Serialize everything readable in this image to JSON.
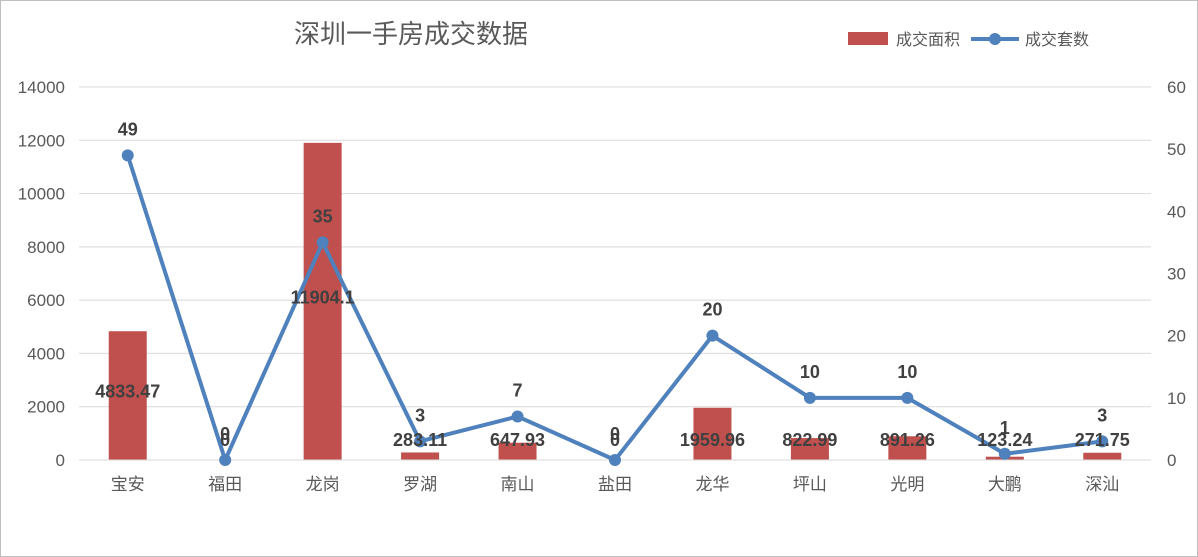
{
  "chart_data": {
    "type": "bar",
    "title": "深圳一手房成交数据",
    "categories": [
      "宝安",
      "福田",
      "龙岗",
      "罗湖",
      "南山",
      "盐田",
      "龙华",
      "坪山",
      "光明",
      "大鹏",
      "深汕"
    ],
    "series": [
      {
        "name": "成交面积",
        "type": "bar",
        "axis": "left",
        "color": "#c0504d",
        "values": [
          4833.47,
          0,
          11904.1,
          283.11,
          647.93,
          0,
          1959.96,
          822.99,
          891.26,
          123.24,
          271.75
        ],
        "labels": [
          "4833.47",
          "0",
          "11904.1",
          "283.11",
          "647.93",
          "0",
          "1959.96",
          "822.99",
          "891.26",
          "123.24",
          "271.75"
        ]
      },
      {
        "name": "成交套数",
        "type": "line",
        "axis": "right",
        "color": "#4f81bd",
        "values": [
          49,
          0,
          35,
          3,
          7,
          0,
          20,
          10,
          10,
          1,
          3
        ],
        "labels": [
          "49",
          "0",
          "35",
          "3",
          "7",
          "0",
          "20",
          "10",
          "10",
          "1",
          "3"
        ]
      }
    ],
    "y_left": {
      "range": [
        0,
        14000
      ],
      "ticks": [
        "0",
        "2000",
        "4000",
        "6000",
        "8000",
        "10000",
        "12000",
        "14000"
      ]
    },
    "y_right": {
      "range": [
        0,
        60
      ],
      "ticks": [
        "0",
        "10",
        "20",
        "30",
        "40",
        "50",
        "60"
      ]
    },
    "grid": true,
    "legend_position": "top-right"
  }
}
